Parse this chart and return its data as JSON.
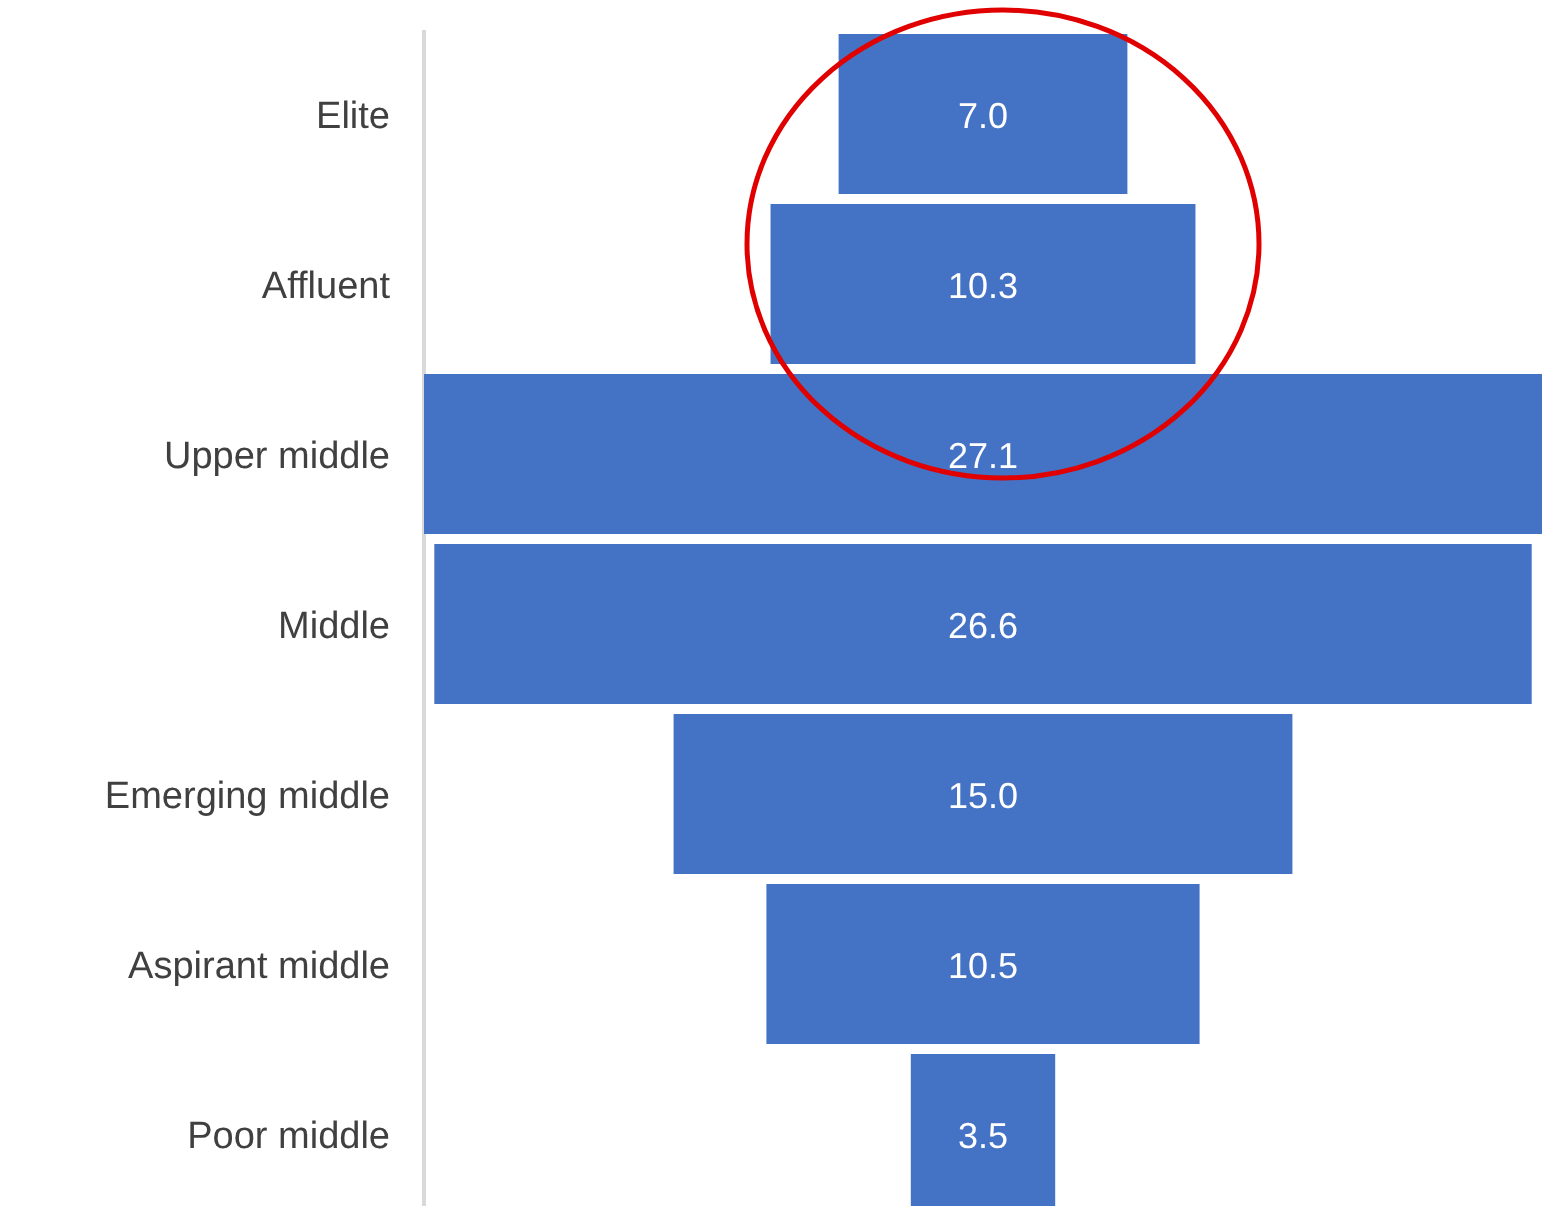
{
  "chart_data": {
    "type": "other",
    "categories": [
      "Elite",
      "Affluent",
      "Upper middle",
      "Middle",
      "Emerging middle",
      "Aspirant middle",
      "Poor middle"
    ],
    "values": [
      7.0,
      10.3,
      27.1,
      26.6,
      15.0,
      10.5,
      3.5
    ],
    "value_labels": [
      "7.0",
      "10.3",
      "27.1",
      "26.6",
      "15.0",
      "10.5",
      "3.5"
    ],
    "color": "#4472c4"
  }
}
